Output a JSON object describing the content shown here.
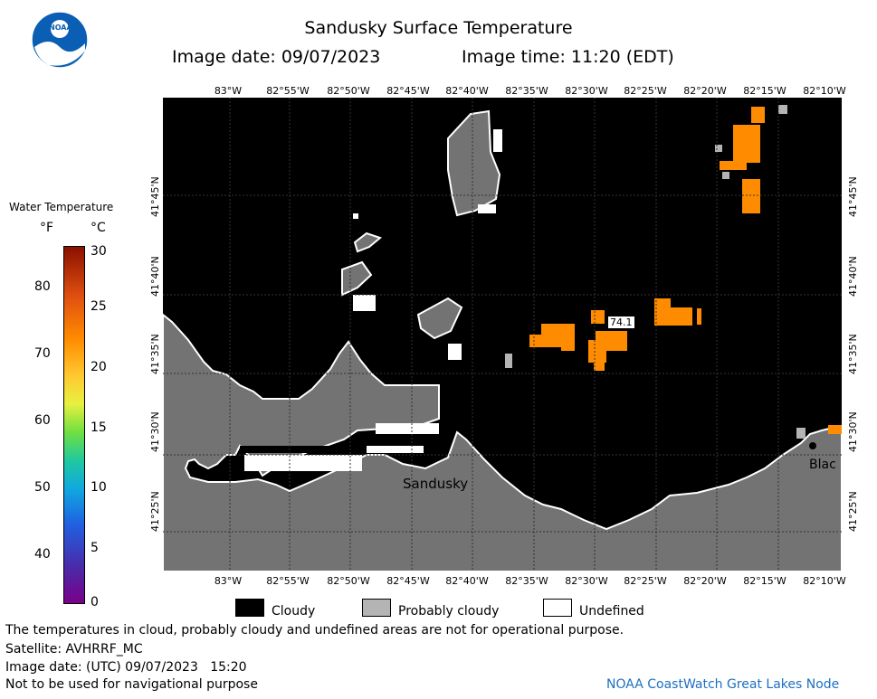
{
  "header": {
    "title": "Sandusky Surface Temperature",
    "image_date": "Image date: 09/07/2023",
    "image_time": "Image time: 11:20 (EDT)"
  },
  "logo": {
    "text": "NOAA"
  },
  "map": {
    "lon_labels": [
      "83°W",
      "82°55'W",
      "82°50'W",
      "82°45'W",
      "82°40'W",
      "82°35'W",
      "82°30'W",
      "82°25'W",
      "82°20'W",
      "82°15'W",
      "82°10'W"
    ],
    "lat_labels": [
      "41°45'N",
      "41°40'N",
      "41°35'N",
      "41°30'N",
      "41°25'N"
    ],
    "place_labels": {
      "sandusky": "Sandusky",
      "black": "Blac"
    },
    "temp_readout": "74.1",
    "colors": {
      "water": "#000000",
      "land": "#737373",
      "cloud_prob": "#b4b4b4",
      "undefined": "#ffffff",
      "warm": "#ff8c00"
    }
  },
  "legend": {
    "title": "Water Temperature",
    "unit_f": "°F",
    "unit_c": "°C",
    "f_ticks": [
      "80",
      "70",
      "60",
      "50",
      "40"
    ],
    "c_ticks": [
      "30",
      "25",
      "20",
      "15",
      "10",
      "5",
      "0"
    ]
  },
  "key": {
    "cloudy": "Cloudy",
    "probably_cloudy": "Probably cloudy",
    "undefined": "Undefined"
  },
  "footer": {
    "note": "The temperatures in cloud, probably cloudy and undefined areas are not for operational purpose.",
    "satellite": "Satellite: AVHRRF_MC",
    "utc_date": "Image date: (UTC) 09/07/2023   15:20",
    "nav": "Not to be used for navigational purpose",
    "credit": "NOAA CoastWatch Great Lakes Node"
  }
}
